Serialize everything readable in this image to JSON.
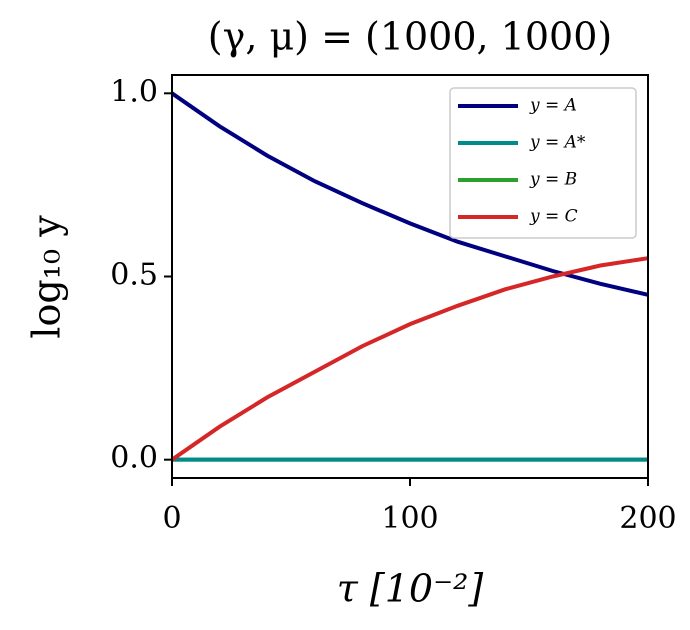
{
  "chart_data": {
    "type": "line",
    "title": "(γ, μ) = (1000, 1000)",
    "x_label": "τ [10⁻²]",
    "y_label": "log₁₀ y",
    "x": [
      0,
      20,
      40,
      60,
      80,
      100,
      120,
      140,
      160,
      180,
      200
    ],
    "series": [
      {
        "name": "y = A",
        "color": "#000080",
        "values": [
          1.0,
          0.91,
          0.83,
          0.76,
          0.7,
          0.645,
          0.595,
          0.555,
          0.515,
          0.48,
          0.45
        ]
      },
      {
        "name": "y = A*",
        "color": "#008b8b",
        "values": [
          0,
          0,
          0,
          0,
          0,
          0,
          0,
          0,
          0,
          0,
          0
        ]
      },
      {
        "name": "y = B",
        "color": "#2ca02c",
        "values": [
          0,
          0,
          0,
          0,
          0,
          0,
          0,
          0,
          0,
          0,
          0
        ]
      },
      {
        "name": "y = C",
        "color": "#d62728",
        "values": [
          0,
          0.09,
          0.17,
          0.24,
          0.31,
          0.37,
          0.42,
          0.465,
          0.5,
          0.53,
          0.55
        ]
      }
    ],
    "xlim": [
      0,
      200
    ],
    "xticks": [
      0,
      100,
      200
    ],
    "ylim": [
      -0.05,
      1.05
    ],
    "yticks": [
      {
        "value": 0,
        "label": "0.0"
      },
      {
        "value": 0.5,
        "label": "0.5"
      },
      {
        "value": 1,
        "label": "1.0"
      }
    ],
    "legend": "upper right"
  }
}
